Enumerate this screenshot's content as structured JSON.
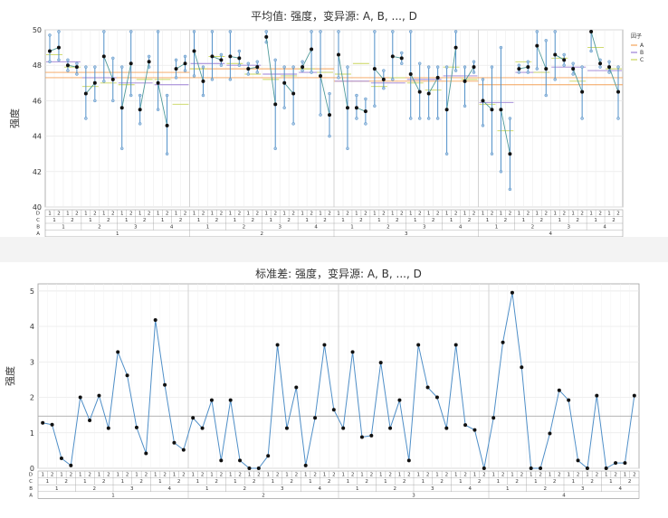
{
  "chart_data": [
    {
      "type": "line",
      "title": "平均值: 强度，变异源: A, B, ..., D",
      "ylabel": "强度",
      "ylim": [
        40,
        50
      ],
      "yticks": [
        40,
        42,
        44,
        46,
        48,
        50
      ],
      "grid": true,
      "factor_rows": [
        "D",
        "C",
        "B",
        "A"
      ],
      "levels": {
        "A": [
          "1",
          "2",
          "3",
          "4"
        ],
        "B": [
          "1",
          "2",
          "3",
          "4"
        ],
        "C": [
          "1",
          "2"
        ],
        "D": [
          "1",
          "2"
        ]
      },
      "grand_mean": 47.3,
      "legend": {
        "title": "因子",
        "position": "right",
        "entries": [
          {
            "name": "A",
            "color": "#f4a259"
          },
          {
            "name": "B",
            "color": "#9b7fd4"
          },
          {
            "name": "C",
            "color": "#c9d65b"
          }
        ]
      },
      "a_means": [
        47.6,
        47.8,
        47.1,
        46.9
      ],
      "b_means": [
        48.2,
        47.3,
        47.0,
        46.9,
        48.1,
        48.0,
        47.5,
        47.6,
        47.1,
        47.0,
        47.2,
        47.4,
        45.9,
        47.6,
        47.9,
        47.7
      ],
      "c_means": [
        48.6,
        47.9,
        46.8,
        47.0,
        46.9,
        47.2,
        47.2,
        45.8,
        47.8,
        48.5,
        48.1,
        47.5,
        47.2,
        47.4,
        47.8,
        47.6,
        47.5,
        48.1,
        46.8,
        47.3,
        47.0,
        46.6,
        47.9,
        47.2,
        45.8,
        44.3,
        48.2,
        47.6,
        48.4,
        47.1,
        49.0,
        47.8
      ],
      "d_means": [
        48.8,
        49.0,
        48.0,
        47.9,
        46.4,
        47.0,
        48.5,
        47.2,
        45.6,
        48.1,
        45.5,
        48.2,
        47.0,
        44.6,
        47.8,
        48.1,
        48.8,
        47.1,
        48.5,
        48.3,
        48.5,
        48.4,
        47.8,
        47.9,
        49.6,
        45.8,
        47.0,
        46.4,
        47.9,
        48.9,
        47.4,
        45.2,
        48.6,
        45.6,
        45.6,
        45.4,
        47.8,
        47.2,
        48.5,
        48.4,
        47.5,
        46.5,
        46.4,
        47.3,
        45.5,
        49.0,
        47.1,
        47.9,
        46.0,
        45.5,
        45.5,
        43.0,
        47.8,
        47.9,
        49.1,
        47.8,
        48.6,
        48.3,
        47.8,
        46.5,
        49.9,
        48.1,
        47.9,
        46.5
      ],
      "range_low": [
        48.2,
        48.3,
        47.7,
        47.5,
        45.0,
        46.0,
        47.1,
        46.0,
        43.3,
        46.3,
        44.7,
        47.9,
        45.5,
        43.0,
        47.3,
        47.7,
        47.4,
        46.3,
        47.2,
        48.0,
        47.2,
        48.0,
        47.5,
        47.6,
        49.3,
        43.3,
        45.6,
        44.7,
        47.7,
        47.6,
        45.2,
        44.0,
        47.3,
        43.3,
        45.0,
        44.7,
        45.7,
        46.7,
        47.2,
        48.1,
        45.0,
        45.0,
        45.0,
        45.0,
        43.0,
        47.7,
        45.7,
        47.6,
        44.6,
        43.0,
        42.0,
        41.0,
        47.6,
        47.6,
        47.8,
        46.3,
        47.2,
        48.0,
        47.5,
        45.0,
        48.8,
        47.9,
        47.6,
        45.0
      ],
      "range_high": [
        49.7,
        49.9,
        48.3,
        48.1,
        47.9,
        47.9,
        49.9,
        48.4,
        47.9,
        49.9,
        46.3,
        48.5,
        49.9,
        46.3,
        48.3,
        48.5,
        49.9,
        47.9,
        49.9,
        48.6,
        49.9,
        48.8,
        48.1,
        48.2,
        49.9,
        48.3,
        47.9,
        47.9,
        48.2,
        49.9,
        49.9,
        46.4,
        49.9,
        47.9,
        46.3,
        46.1,
        49.9,
        47.7,
        49.9,
        48.7,
        49.9,
        48.1,
        47.9,
        47.9,
        47.9,
        49.9,
        47.9,
        48.2,
        47.2,
        47.9,
        49.0,
        45.0,
        48.0,
        48.2,
        49.9,
        49.4,
        49.9,
        48.6,
        48.1,
        47.9,
        49.9,
        48.3,
        48.2,
        47.9
      ]
    },
    {
      "type": "line",
      "title": "标准差: 强度，变异源: A, B, ..., D",
      "ylabel": "强度",
      "ylim": [
        0,
        5.2
      ],
      "yticks": [
        0,
        1,
        2,
        3,
        4,
        5
      ],
      "grid": true,
      "factor_rows": [
        "D",
        "C",
        "B",
        "A"
      ],
      "levels": {
        "A": [
          "1",
          "2",
          "3",
          "4"
        ],
        "B": [
          "1",
          "2",
          "3",
          "4"
        ],
        "C": [
          "1",
          "2"
        ],
        "D": [
          "1",
          "2"
        ]
      },
      "mean_line": 1.47,
      "values": [
        1.28,
        1.23,
        0.28,
        0.08,
        2.0,
        1.35,
        2.05,
        1.13,
        3.28,
        2.62,
        1.15,
        0.42,
        4.18,
        2.35,
        0.72,
        0.52,
        1.42,
        1.13,
        1.92,
        0.22,
        1.92,
        0.22,
        0.0,
        0.0,
        0.35,
        3.48,
        1.13,
        2.28,
        0.08,
        1.42,
        3.48,
        1.65,
        1.13,
        3.28,
        0.88,
        0.92,
        2.98,
        1.13,
        1.92,
        0.22,
        3.48,
        2.28,
        2.0,
        1.13,
        3.48,
        1.22,
        1.08,
        0.0,
        1.42,
        3.55,
        4.95,
        2.85,
        0.0,
        0.0,
        0.98,
        2.2,
        1.92,
        0.22,
        0.0,
        2.05,
        0.0,
        0.15,
        0.15,
        2.05
      ]
    }
  ]
}
